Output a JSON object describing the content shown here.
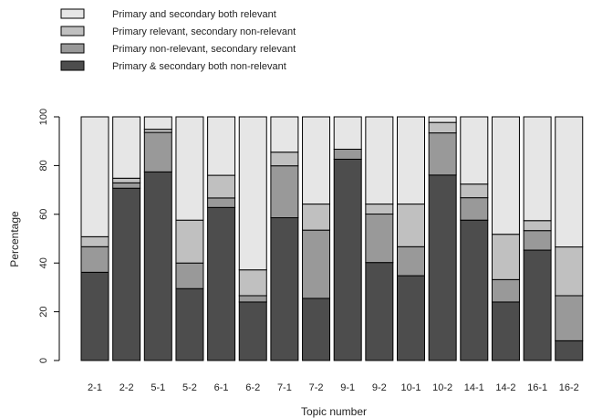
{
  "chart_data": {
    "type": "bar",
    "stacked": true,
    "title": "",
    "xlabel": "Topic number",
    "ylabel": "Percentage",
    "ylim": [
      0,
      100
    ],
    "yticks": [
      0,
      20,
      40,
      60,
      80,
      100
    ],
    "grid": false,
    "legend_position": "top-left",
    "categories": [
      "2-1",
      "2-2",
      "5-1",
      "5-2",
      "6-1",
      "6-2",
      "7-1",
      "7-2",
      "9-1",
      "9-2",
      "10-1",
      "10-2",
      "14-1",
      "14-2",
      "16-1",
      "16-2"
    ],
    "series": [
      {
        "name": "Primary & secondary both non-relevant",
        "color": "#4d4d4d",
        "values": [
          36.2,
          70.7,
          77.4,
          29.5,
          62.8,
          24.0,
          58.6,
          25.5,
          82.6,
          40.2,
          34.8,
          76.1,
          57.6,
          24.0,
          45.3,
          8.1
        ]
      },
      {
        "name": "Primary non-relevant, secondary relevant",
        "color": "#999999",
        "values": [
          10.5,
          2.2,
          16.2,
          10.5,
          3.9,
          2.6,
          21.3,
          28.0,
          4.1,
          19.9,
          11.9,
          17.3,
          9.2,
          9.2,
          8.0,
          18.5
        ]
      },
      {
        "name": "Primary relevant, secondary non-relevant",
        "color": "#c0c0c0",
        "values": [
          4.1,
          1.9,
          1.3,
          17.6,
          9.3,
          10.6,
          5.6,
          10.7,
          0.0,
          4.1,
          17.5,
          4.3,
          5.6,
          18.6,
          4.1,
          20.0
        ]
      },
      {
        "name": "Primary and secondary both relevant",
        "color": "#e6e6e6",
        "values": [
          49.2,
          25.2,
          5.1,
          42.4,
          24.0,
          62.8,
          14.5,
          35.8,
          13.3,
          35.8,
          35.8,
          2.3,
          27.6,
          48.2,
          42.6,
          53.4
        ]
      }
    ]
  },
  "legend": {
    "items": [
      {
        "label": "Primary and secondary both relevant",
        "color": "#e6e6e6"
      },
      {
        "label": "Primary relevant, secondary non-relevant",
        "color": "#c0c0c0"
      },
      {
        "label": "Primary non-relevant, secondary relevant",
        "color": "#999999"
      },
      {
        "label": "Primary & secondary both non-relevant",
        "color": "#4d4d4d"
      }
    ]
  }
}
